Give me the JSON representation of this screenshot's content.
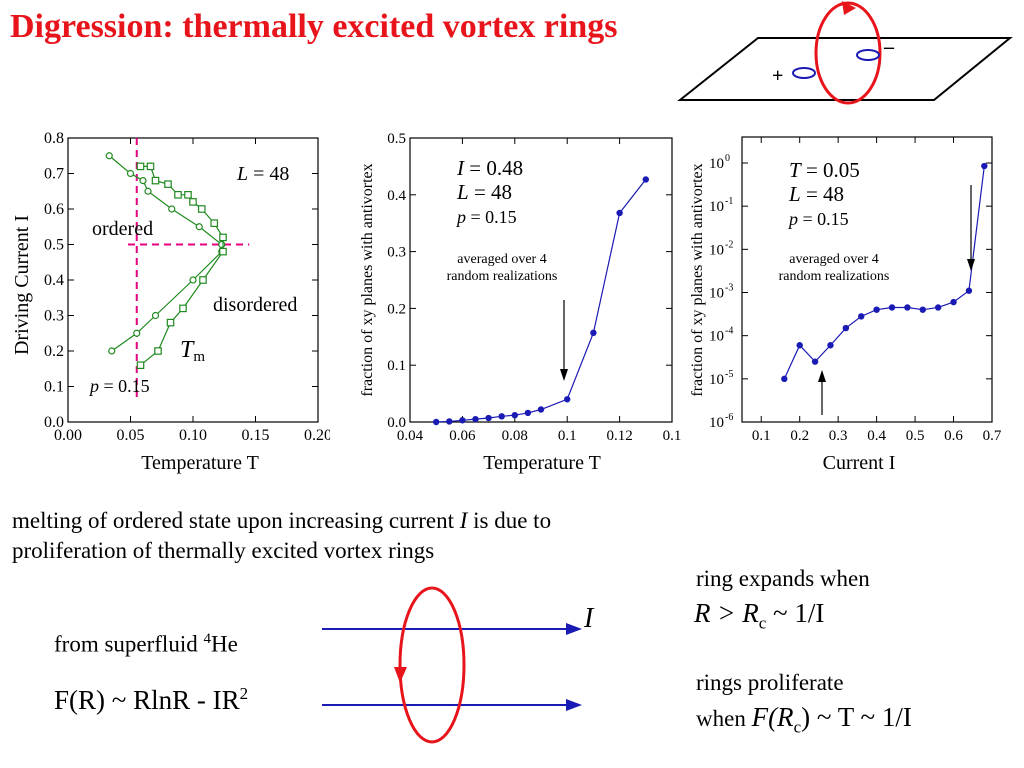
{
  "title": "Digression:  thermally excited vortex rings",
  "top_diagram": {
    "plus": "+",
    "minus": "–",
    "colors": {
      "ring": "#e8141b",
      "vortex": "#1a1ab4"
    }
  },
  "chart_data": [
    {
      "type": "scatter",
      "panel": "left",
      "xlabel": "Temperature  T",
      "ylabel": "Driving Current   I",
      "xlim": [
        0.0,
        0.2
      ],
      "ylim": [
        0.0,
        0.8
      ],
      "xticks": [
        "0.00",
        "0.05",
        "0.10",
        "0.15",
        "0.20"
      ],
      "yticks": [
        "0.0",
        "0.1",
        "0.2",
        "0.3",
        "0.4",
        "0.5",
        "0.6",
        "0.7",
        "0.8"
      ],
      "annotations": {
        "L": "L = 48",
        "ordered": "ordered",
        "disordered": "disordered",
        "Tm": "T",
        "Tm_sub": "m",
        "p": "p = 0.15"
      },
      "series": [
        {
          "marker": "circle",
          "x": [
            0.033,
            0.05,
            0.06,
            0.064,
            0.083,
            0.105,
            0.123,
            0.123,
            0.1,
            0.07,
            0.055,
            0.035
          ],
          "y": [
            0.75,
            0.7,
            0.68,
            0.65,
            0.6,
            0.55,
            0.5,
            0.48,
            0.4,
            0.3,
            0.25,
            0.2
          ]
        },
        {
          "marker": "square",
          "x": [
            0.058,
            0.066,
            0.07,
            0.08,
            0.088,
            0.096,
            0.1,
            0.107,
            0.117,
            0.124,
            0.124,
            0.108,
            0.092,
            0.082,
            0.072,
            0.058
          ],
          "y": [
            0.72,
            0.72,
            0.68,
            0.67,
            0.64,
            0.64,
            0.62,
            0.6,
            0.56,
            0.52,
            0.48,
            0.4,
            0.32,
            0.28,
            0.2,
            0.16
          ]
        }
      ],
      "dashed_lines": {
        "x": 0.055,
        "y": 0.5
      },
      "colors": {
        "series": "#1f8a1f",
        "dashed": "#e6007e"
      }
    },
    {
      "type": "line",
      "panel": "middle",
      "xlabel": "Temperature  T",
      "ylabel": "fraction of xy planes with antivortex",
      "xlim": [
        0.04,
        0.14
      ],
      "ylim": [
        0.0,
        0.5
      ],
      "xticks": [
        "0.04",
        "0.06",
        "0.08",
        "0.1",
        "0.12",
        "0.1"
      ],
      "yticks": [
        "0.0",
        "0.1",
        "0.2",
        "0.3",
        "0.4",
        "0.5"
      ],
      "annotations": {
        "I": "I = 0.48",
        "L": "L = 48",
        "p": "p = 0.15",
        "note1": "averaged over 4",
        "note2": "random realizations"
      },
      "x": [
        0.05,
        0.055,
        0.06,
        0.065,
        0.07,
        0.075,
        0.08,
        0.085,
        0.09,
        0.1,
        0.11,
        0.12,
        0.13
      ],
      "y": [
        0.0,
        0.001,
        0.003,
        0.005,
        0.007,
        0.01,
        0.012,
        0.016,
        0.022,
        0.04,
        0.157,
        0.368,
        0.427
      ],
      "colors": {
        "series": "#1a1ab4"
      }
    },
    {
      "type": "line",
      "panel": "right",
      "xlabel": "Current     I",
      "ylabel": "fraction of xy planes with antivortex",
      "xlim": [
        0.05,
        0.7
      ],
      "ylim": [
        1e-06,
        3.0
      ],
      "log_y": true,
      "xticks": [
        "0.1",
        "0.2",
        "0.3",
        "0.4",
        "0.5",
        "0.6",
        "0.7"
      ],
      "yticks": [
        "10",
        "10",
        "10",
        "10",
        "10",
        "10",
        "10"
      ],
      "ytick_exps": [
        "0",
        "-1",
        "-2",
        "-3",
        "-4",
        "-5",
        "-6"
      ],
      "annotations": {
        "T": "T = 0.05",
        "L": "L = 48",
        "p": "p = 0.15",
        "note1": "averaged over 4",
        "note2": "random realizations"
      },
      "x": [
        0.16,
        0.2,
        0.24,
        0.28,
        0.32,
        0.36,
        0.4,
        0.44,
        0.48,
        0.52,
        0.56,
        0.6,
        0.64,
        0.68
      ],
      "y": [
        1e-05,
        6e-05,
        2.5e-05,
        6e-05,
        0.00015,
        0.00028,
        0.0004,
        0.00045,
        0.00045,
        0.0004,
        0.00045,
        0.0006,
        0.0011,
        0.85
      ],
      "colors": {
        "series": "#1a1ab4"
      }
    }
  ],
  "text": {
    "melting_line1_a": "melting of ordered state upon increasing current ",
    "melting_line1_I": "I",
    "melting_line1_b": " is due to",
    "melting_line2": "proliferation of thermally excited vortex rings",
    "ring_expands": "ring expands when",
    "R_cond": "R > R",
    "R_cond_sub": "c",
    "R_cond_tail": " ~ 1/I",
    "superfluid_a": "from superfluid ",
    "superfluid_sup": "4",
    "superfluid_b": "He",
    "free_energy": "F(R) ~ RlnR - IR",
    "free_energy_sup": "2",
    "proliferate": "rings proliferate",
    "when_a": "when ",
    "when_F": "F(R",
    "when_sub": "c",
    "when_b": ") ~ T ~ 1/I",
    "I_label": "I"
  }
}
